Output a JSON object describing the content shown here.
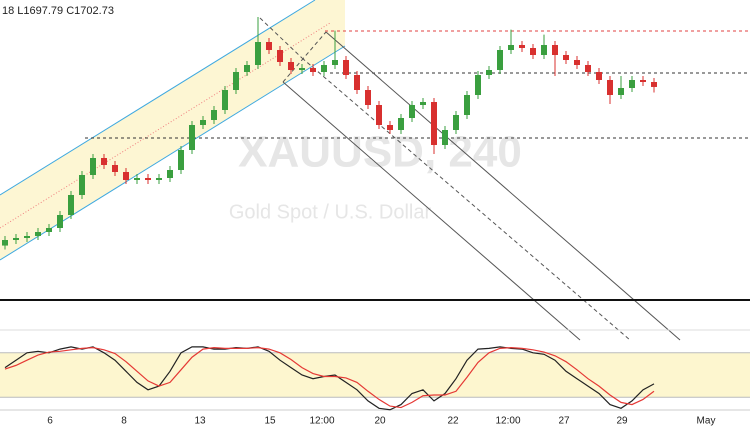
{
  "chart_data": [
    {
      "type": "candlestick",
      "ohlc_label": "18  L1697.79  C1702.73",
      "watermark": "XAUUSD, 240",
      "watermark_subtitle": "Gold Spot / U.S. Dollar",
      "up_color": "#3a9f3f",
      "down_color": "#d8302f",
      "ylim": [
        1511,
        1781
      ],
      "x_labels": [
        "6",
        "8",
        "13",
        "15",
        "12:00",
        "20",
        "22",
        "12:00",
        "27",
        "29",
        "May"
      ],
      "open": [
        1560,
        1565,
        1566.8,
        1568.6,
        1572.2,
        1575.8,
        1587.5,
        1605.5,
        1623.5,
        1638.8,
        1632.5,
        1626.2,
        1619,
        1620.8,
        1619,
        1620.8,
        1628,
        1646,
        1668.5,
        1673,
        1682,
        1700,
        1716.2,
        1722.5,
        1743.2,
        1736,
        1725.2,
        1718,
        1719.8,
        1716.2,
        1722.5,
        1727,
        1713.5,
        1700,
        1686.5,
        1668.5,
        1664,
        1674.8,
        1686.5,
        1689.2,
        1650.5,
        1664,
        1677.5,
        1695.5,
        1713.5,
        1718,
        1736,
        1740.5,
        1737.8,
        1731.5,
        1740.5,
        1731.5,
        1727,
        1722.5,
        1716.2,
        1709,
        1695.5,
        1701.8,
        1709,
        1707.2
      ],
      "high": [
        1568.6,
        1570.4,
        1572.2,
        1575.8,
        1579.4,
        1591.1,
        1609.1,
        1627.1,
        1642.4,
        1642.4,
        1636.1,
        1629.8,
        1624.4,
        1624.4,
        1624.4,
        1631.6,
        1649.6,
        1672.1,
        1676.6,
        1685.6,
        1703.6,
        1719.8,
        1726.1,
        1765.7,
        1746.8,
        1739.6,
        1728.8,
        1723.4,
        1723.4,
        1726.1,
        1753.4,
        1730.6,
        1717.1,
        1703.6,
        1690.1,
        1672.1,
        1678.4,
        1690.1,
        1692.8,
        1692.8,
        1667.6,
        1681.1,
        1699.1,
        1717.1,
        1721.6,
        1739.6,
        1754.3,
        1744.1,
        1741.4,
        1749.8,
        1744.1,
        1735.1,
        1730.6,
        1726.1,
        1719.8,
        1712.6,
        1712.6,
        1712.6,
        1712.6,
        1710.8
      ],
      "low": [
        1556.4,
        1561.4,
        1563.2,
        1565,
        1568.6,
        1572.2,
        1583.9,
        1601.9,
        1619.9,
        1628.9,
        1622.6,
        1615.4,
        1615.4,
        1615.4,
        1615.4,
        1617.2,
        1624.4,
        1642.4,
        1664.9,
        1669.4,
        1678.4,
        1696.4,
        1712.6,
        1718.9,
        1732.4,
        1721.6,
        1714.4,
        1714.4,
        1712.6,
        1712.6,
        1718.9,
        1709.9,
        1696.4,
        1682.9,
        1664.9,
        1660.4,
        1660.4,
        1671.2,
        1682.9,
        1642.4,
        1646.9,
        1660.4,
        1673.9,
        1691.9,
        1709.9,
        1714.4,
        1732.4,
        1734.2,
        1727.9,
        1727.9,
        1712.6,
        1723.4,
        1718.9,
        1712.6,
        1705.4,
        1687.4,
        1691.9,
        1698.2,
        1703.6,
        1697.79
      ],
      "close": [
        1565,
        1566.8,
        1568.6,
        1572.2,
        1575.8,
        1587.5,
        1605.5,
        1623.5,
        1638.8,
        1632.5,
        1626.2,
        1619,
        1620.8,
        1619,
        1620.8,
        1628,
        1646,
        1668.5,
        1673,
        1682,
        1700,
        1716.2,
        1722.5,
        1743.2,
        1736,
        1725.2,
        1718,
        1719.8,
        1716.2,
        1722.5,
        1727,
        1713.5,
        1700,
        1686.5,
        1668.5,
        1664,
        1674.8,
        1686.5,
        1689.2,
        1650.5,
        1664,
        1677.5,
        1695.5,
        1713.5,
        1718,
        1736,
        1740.5,
        1737.8,
        1731.5,
        1740.5,
        1731.5,
        1727,
        1722.5,
        1716.2,
        1709,
        1695.5,
        1701.8,
        1709,
        1707.2,
        1702.73
      ]
    },
    {
      "type": "line",
      "ylim": [
        0,
        100
      ],
      "levels": [
        20,
        80
      ],
      "band_color": "#fdf6cf",
      "series": [
        {
          "color": "#222222",
          "values": [
            60,
            70,
            80,
            82,
            80,
            85,
            88,
            85,
            88,
            80,
            70,
            55,
            40,
            30,
            35,
            55,
            80,
            88,
            88,
            85,
            85,
            87,
            86,
            88,
            82,
            70,
            60,
            50,
            45,
            48,
            50,
            40,
            30,
            15,
            5,
            3,
            10,
            25,
            30,
            15,
            25,
            45,
            70,
            85,
            86,
            88,
            86,
            85,
            80,
            78,
            70,
            55,
            45,
            35,
            25,
            10,
            5,
            15,
            30,
            38
          ]
        },
        {
          "color": "#e53935",
          "values": [
            58,
            63,
            70,
            77,
            81,
            82,
            84,
            86,
            87,
            84,
            79,
            68,
            55,
            42,
            35,
            40,
            57,
            74,
            85,
            87,
            86,
            86,
            86,
            87,
            85,
            80,
            71,
            60,
            52,
            48,
            48,
            46,
            40,
            28,
            17,
            8,
            6,
            13,
            22,
            23,
            23,
            28,
            47,
            67,
            80,
            86,
            87,
            86,
            84,
            81,
            76,
            68,
            57,
            45,
            35,
            23,
            13,
            10,
            17,
            28
          ]
        }
      ]
    }
  ]
}
